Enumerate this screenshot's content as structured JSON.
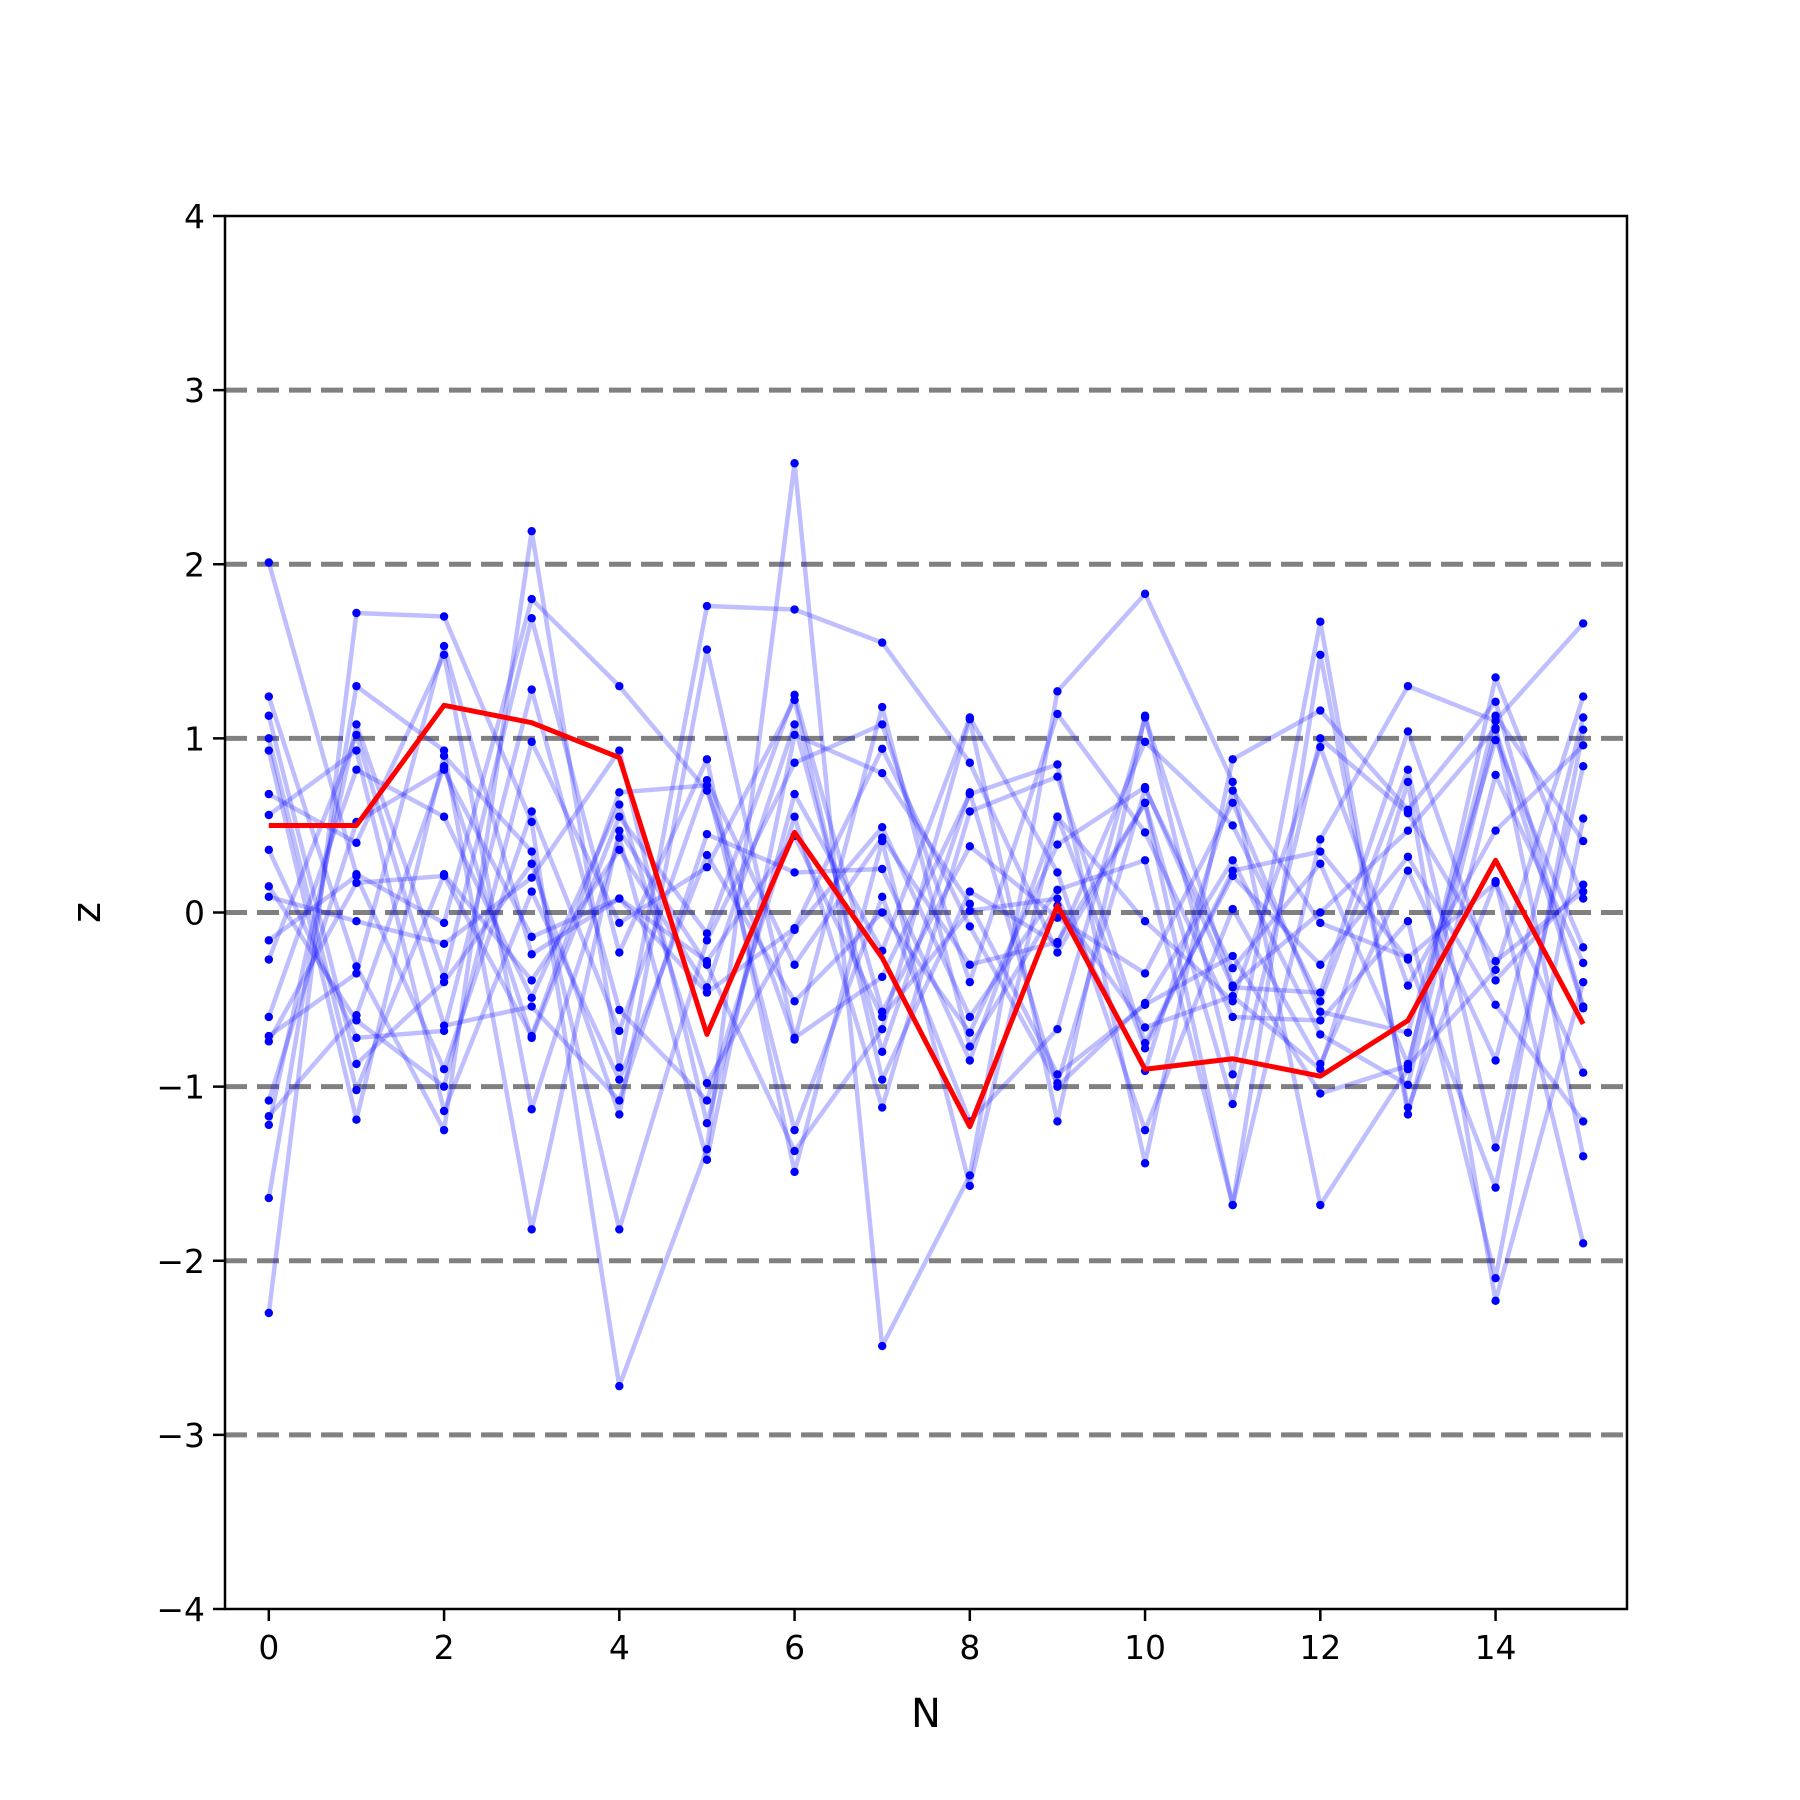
{
  "chart_data": {
    "type": "line",
    "title": "",
    "xlabel": "N",
    "ylabel": "z",
    "xlim": [
      -0.5,
      15.5
    ],
    "ylim": [
      -4,
      4
    ],
    "x_ticks": [
      0,
      2,
      4,
      6,
      8,
      10,
      12,
      14
    ],
    "x_tick_labels": [
      "0",
      "2",
      "4",
      "6",
      "8",
      "10",
      "12",
      "14"
    ],
    "y_ticks": [
      -4,
      -3,
      -2,
      -1,
      0,
      1,
      2,
      3,
      4
    ],
    "y_tick_labels": [
      "−4",
      "−3",
      "−2",
      "−1",
      "0",
      "1",
      "2",
      "3",
      "4"
    ],
    "reference_lines": [
      -3,
      -2,
      -1,
      0,
      1,
      2,
      3
    ],
    "reference_line_style": "dashed",
    "reference_line_color": "#808080",
    "grid": false,
    "legend": "none",
    "x": [
      0,
      1,
      2,
      3,
      4,
      5,
      6,
      7,
      8,
      9,
      10,
      11,
      12,
      13,
      14,
      15
    ],
    "highlight": {
      "color": "#ff0000",
      "values": [
        0.5,
        0.5,
        1.19,
        1.09,
        0.89,
        -0.7,
        0.46,
        -0.26,
        -1.23,
        0.04,
        -0.9,
        -0.84,
        -0.94,
        -0.62,
        0.3,
        -0.64
      ]
    },
    "background_series_color": "#0000ff",
    "series": [
      {
        "values": [
          2.01,
          0.22,
          -0.06,
          1.8,
          1.3,
          0.7,
          -0.73,
          1.18,
          -0.77,
          0.04,
          -0.66,
          -0.48,
          -0.9,
          0.75,
          -2.23,
          -0.4
        ]
      },
      {
        "values": [
          -2.3,
          1.72,
          1.7,
          0.52,
          -2.72,
          -1.36,
          2.58,
          -2.49,
          -1.51,
          1.27,
          1.83,
          0.75,
          -1.68,
          -0.9,
          1.35,
          0.08
        ]
      },
      {
        "values": [
          1.24,
          -0.31,
          -1.25,
          2.19,
          -0.89,
          1.76,
          1.74,
          1.55,
          0.86,
          -0.23,
          0.63,
          -1.68,
          0.42,
          1.3,
          1.1,
          1.66
        ]
      },
      {
        "values": [
          -1.64,
          1.3,
          0.93,
          -1.82,
          0.47,
          -0.3,
          -1.37,
          -0.67,
          1.11,
          -1.2,
          1.13,
          -0.93,
          1.67,
          -1.16,
          0.79,
          -0.29
        ]
      },
      {
        "values": [
          1.13,
          -0.87,
          -0.4,
          0.28,
          -1.16,
          1.51,
          -0.72,
          -0.37,
          0.68,
          0.85,
          -1.44,
          0.88,
          1.16,
          0.59,
          1.21,
          -0.54
        ]
      },
      {
        "values": [
          0.68,
          0.4,
          1.48,
          -1.13,
          0.43,
          -1.42,
          1.02,
          0.8,
          0.05,
          -0.93,
          -0.53,
          -0.25,
          -1.04,
          -0.88,
          -0.33,
          1.24
        ]
      },
      {
        "values": [
          -1.22,
          1.08,
          -0.37,
          1.69,
          -0.23,
          0.88,
          -1.49,
          0.41,
          -1.57,
          0.55,
          -0.78,
          0.24,
          0.35,
          -0.27,
          -1.58,
          1.05
        ]
      },
      {
        "values": [
          0.15,
          -0.62,
          -1.0,
          0.98,
          -0.06,
          0.26,
          1.22,
          -0.96,
          0.12,
          -0.18,
          0.98,
          0.5,
          -0.51,
          0.82,
          -1.35,
          0.84
        ]
      },
      {
        "values": [
          -0.6,
          0.82,
          0.55,
          -0.49,
          0.62,
          -0.98,
          -0.1,
          0.49,
          -0.6,
          0.13,
          0.3,
          -1.68,
          1.48,
          -1.12,
          0.18,
          -1.9
        ]
      },
      {
        "values": [
          0.93,
          -1.19,
          0.9,
          0.35,
          -1.82,
          -0.16,
          0.86,
          1.08,
          -0.4,
          1.14,
          0.46,
          -0.6,
          -0.62,
          -0.05,
          -2.1,
          0.54
        ]
      },
      {
        "values": [
          -0.74,
          0.17,
          0.21,
          -0.71,
          0.69,
          0.73,
          -1.25,
          0.09,
          -1.2,
          -0.67,
          1.12,
          -0.42,
          0.0,
          0.47,
          1.06,
          -1.4
        ]
      },
      {
        "values": [
          0.36,
          -0.72,
          -0.68,
          1.28,
          -0.56,
          -1.08,
          0.55,
          -1.12,
          0.58,
          0.78,
          -0.75,
          0.21,
          -0.3,
          0.32,
          -0.53,
          -1.2
        ]
      },
      {
        "values": [
          -1.08,
          0.52,
          0.82,
          -0.14,
          0.08,
          -0.46,
          -0.09,
          0.94,
          -0.08,
          -0.98,
          0.71,
          -0.32,
          0.28,
          -0.87,
          1.13,
          0.41
        ]
      },
      {
        "values": [
          0.09,
          -0.05,
          -0.18,
          0.2,
          0.93,
          -1.21,
          0.68,
          -0.22,
          1.12,
          0.23,
          -1.25,
          0.02,
          -0.87,
          0.24,
          -0.85,
          1.12
        ]
      },
      {
        "values": [
          -0.27,
          1.02,
          -0.65,
          -0.54,
          -1.08,
          0.45,
          0.23,
          0.25,
          -0.85,
          0.55,
          -0.05,
          -0.51,
          0.95,
          -0.42,
          0.47,
          0.96
        ]
      },
      {
        "values": [
          1.0,
          -1.02,
          0.22,
          -0.39,
          0.36,
          -0.43,
          1.08,
          -0.8,
          0.69,
          -1.0,
          -0.52,
          0.3,
          -0.7,
          -0.99,
          1.05,
          -0.55
        ]
      },
      {
        "values": [
          -0.16,
          0.21,
          -0.9,
          0.58,
          -0.68,
          0.76,
          -0.3,
          0.43,
          -0.3,
          -0.17,
          0.63,
          -1.1,
          1.0,
          0.57,
          -0.28,
          0.12
        ]
      },
      {
        "values": [
          -0.71,
          -0.35,
          1.53,
          -0.24,
          0.08,
          -0.28,
          0.44,
          -0.6,
          0.01,
          0.08,
          -0.91,
          0.7,
          -0.06,
          -0.26,
          0.17,
          -0.92
        ]
      },
      {
        "values": [
          0.56,
          0.93,
          -1.14,
          0.12,
          -0.96,
          0.33,
          -0.51,
          0.0,
          -0.69,
          0.39,
          0.72,
          -0.43,
          -0.46,
          1.04,
          -0.39,
          0.16
        ]
      },
      {
        "values": [
          -1.17,
          -0.59,
          0.84,
          -0.72,
          0.55,
          -0.12,
          1.25,
          -0.57,
          0.38,
          -0.03,
          -0.35,
          0.63,
          -0.57,
          -0.69,
          0.99,
          -0.2
        ]
      }
    ]
  }
}
